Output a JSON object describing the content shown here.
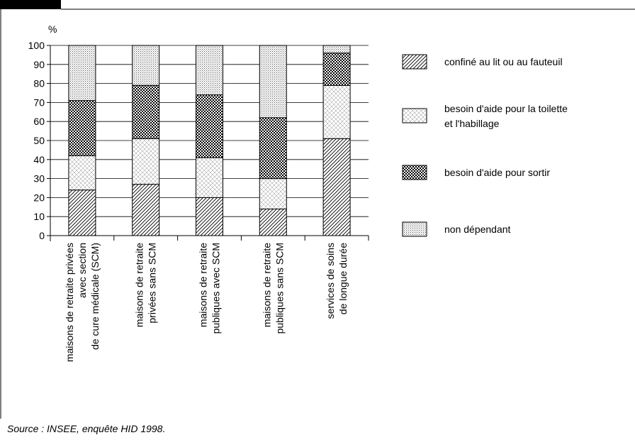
{
  "chart_data": {
    "type": "bar",
    "stacked": true,
    "ylabel": "%",
    "ylim": [
      0,
      100
    ],
    "yticks": [
      0,
      10,
      20,
      30,
      40,
      50,
      60,
      70,
      80,
      90,
      100
    ],
    "grid": true,
    "legend_position": "right",
    "categories": [
      [
        "maisons de retraite privées",
        "avec section",
        "de cure médicale (SCM)"
      ],
      [
        "maisons de retraite",
        "privées sans SCM"
      ],
      [
        "maisons de retraite",
        "publiques avec SCM"
      ],
      [
        "maisons de retraite",
        "publiques sans SCM"
      ],
      [
        "services de soins",
        "de longue durée"
      ]
    ],
    "series": [
      {
        "name": [
          "confiné au lit ou au fauteuil"
        ],
        "pattern": "diag-hatch",
        "values": [
          24,
          27,
          20,
          14,
          51
        ]
      },
      {
        "name": [
          "besoin d'aide pour la toilette",
          "et l'habillage"
        ],
        "pattern": "light-crosshatch",
        "values": [
          18,
          24,
          21,
          16,
          28
        ]
      },
      {
        "name": [
          "besoin d'aide pour sortir"
        ],
        "pattern": "dark-checker",
        "values": [
          29,
          28,
          33,
          32,
          17
        ]
      },
      {
        "name": [
          "non dépendant"
        ],
        "pattern": "fine-dots",
        "values": [
          29,
          21,
          26,
          38,
          4
        ]
      }
    ]
  },
  "source": "Source : INSEE, enquête HID 1998."
}
